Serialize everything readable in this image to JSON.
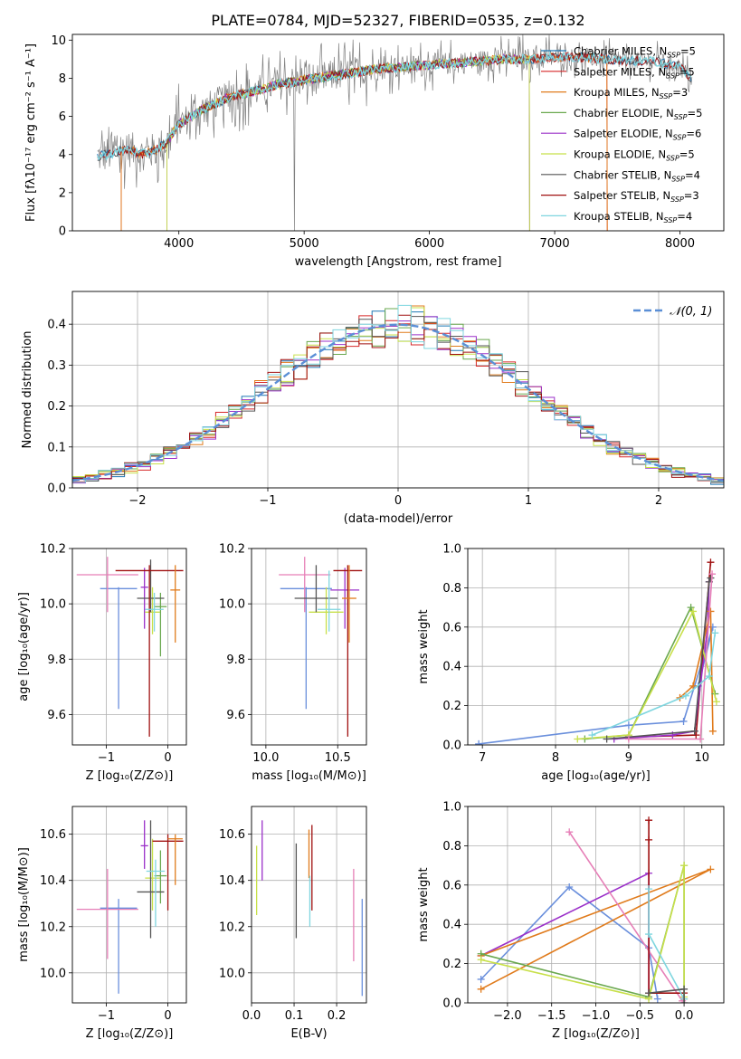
{
  "figure": {
    "title": "PLATE=0784, MJD=52327, FIBERID=0535, z=0.132"
  },
  "colors": {
    "data": "#808080",
    "Chabrier MILES": "#1f77b4",
    "Salpeter MILES": "#d62728",
    "Kroupa MILES": "#e07b1c",
    "Chabrier ELODIE": "#6aa84f",
    "Salpeter ELODIE": "#9b30c9",
    "Kroupa ELODIE": "#c8e04a",
    "Chabrier STELIB": "#555555",
    "Salpeter STELIB": "#a01010",
    "Kroupa STELIB": "#7fd6df",
    "blue": "#6a8fdc",
    "pink": "#e67fb7",
    "gauss": "#5b8fd6"
  },
  "chart_data": [
    {
      "id": "spectrum",
      "type": "line",
      "xlabel": "wavelength [Angstrom, rest frame]",
      "ylabel": "Flux [fλ10⁻¹⁷ erg cm⁻² s⁻¹ A⁻¹]",
      "xlim": [
        3150,
        8350
      ],
      "ylim": [
        0,
        10.3
      ],
      "xticks": [
        4000,
        5000,
        6000,
        7000,
        8000
      ],
      "yticks": [
        0,
        2,
        4,
        6,
        8,
        10
      ],
      "legend_position": "right",
      "legend": [
        "Chabrier MILES, N_SSP=5",
        "Salpeter MILES, N_SSP=5",
        "Kroupa MILES, N_SSP=3",
        "Chabrier ELODIE, N_SSP=5",
        "Salpeter ELODIE, N_SSP=6",
        "Kroupa ELODIE, N_SSP=5",
        "Chabrier STELIB, N_SSP=4",
        "Salpeter STELIB, N_SSP=3",
        "Kroupa STELIB, N_SSP=4"
      ],
      "continuum": {
        "x": [
          3350,
          3500,
          3600,
          3700,
          3800,
          3900,
          4000,
          4100,
          4200,
          4400,
          4600,
          4800,
          5000,
          5200,
          5400,
          5600,
          5800,
          6000,
          6200,
          6400,
          6600,
          6800,
          7000,
          7200,
          7400,
          7600,
          7800,
          8000,
          8100
        ],
        "y": [
          3.9,
          4.1,
          4.3,
          4.0,
          4.2,
          4.6,
          5.6,
          6.0,
          6.4,
          7.0,
          7.3,
          7.7,
          7.9,
          8.1,
          8.3,
          8.5,
          8.6,
          8.7,
          8.8,
          8.9,
          9.0,
          9.0,
          9.1,
          9.1,
          9.0,
          8.9,
          8.9,
          8.6,
          7.9
        ]
      }
    },
    {
      "id": "residuals",
      "type": "bar",
      "xlabel": "(data-model)/error",
      "ylabel": "Normed distribution",
      "xlim": [
        -2.5,
        2.5
      ],
      "ylim": [
        0,
        0.48
      ],
      "xticks": [
        -2,
        -1,
        0,
        1,
        2
      ],
      "yticks": [
        0.0,
        0.1,
        0.2,
        0.3,
        0.4
      ],
      "legend": [
        "𝒩(0, 1)"
      ],
      "legend_position": "top-right",
      "bin_width": 0.1
    },
    {
      "id": "age_Z",
      "type": "scatter",
      "xlabel": "Z [log₁₀(Z/Z⊙)]",
      "ylabel": "age  [log₁₀(age/yr)]",
      "xlim": [
        -1.55,
        0.3
      ],
      "ylim": [
        9.49,
        10.2
      ],
      "xticks": [
        -1,
        0
      ],
      "yticks": [
        9.6,
        9.8,
        10.0,
        10.2
      ],
      "points": [
        {
          "s": "blue",
          "x": -0.8,
          "y": 10.055,
          "xe": 0.3,
          "yl": 9.62,
          "yh": 10.06
        },
        {
          "s": "pink",
          "x": -0.98,
          "y": 10.105,
          "xe": 0.5,
          "yl": 9.97,
          "yh": 10.17
        },
        {
          "s": "Salpeter ELODIE",
          "x": -0.38,
          "y": 10.06,
          "xe": 0.06,
          "yl": 9.91,
          "yh": 10.13
        },
        {
          "s": "Kroupa ELODIE",
          "x": -0.25,
          "y": 9.97,
          "xe": 0.12,
          "yl": 9.89,
          "yh": 10.06
        },
        {
          "s": "Chabrier ELODIE",
          "x": -0.12,
          "y": 9.99,
          "xe": 0.1,
          "yl": 9.81,
          "yh": 10.04
        },
        {
          "s": "Chabrier STELIB",
          "x": -0.28,
          "y": 10.02,
          "xe": 0.22,
          "yl": 9.97,
          "yh": 10.16
        },
        {
          "s": "Salpeter STELIB",
          "x": -0.3,
          "y": 10.12,
          "xe": 0.55,
          "yl": 9.52,
          "yh": 10.14
        },
        {
          "s": "Kroupa MILES",
          "x": 0.12,
          "y": 10.05,
          "xe": 0.08,
          "yl": 9.86,
          "yh": 10.14
        },
        {
          "s": "Kroupa STELIB",
          "x": -0.22,
          "y": 9.98,
          "xe": 0.15,
          "yl": 9.9,
          "yh": 10.04
        }
      ]
    },
    {
      "id": "age_mass",
      "type": "scatter",
      "xlabel": "mass [log₁₀(M/M⊙)]",
      "xlim": [
        9.9,
        10.7
      ],
      "ylim": [
        9.49,
        10.2
      ],
      "xticks": [
        10.0,
        10.5
      ],
      "yticks": [
        9.6,
        9.8,
        10.0,
        10.2
      ],
      "points": [
        {
          "s": "blue",
          "x": 10.28,
          "y": 10.055,
          "xe": 0.18,
          "yl": 9.62,
          "yh": 10.06
        },
        {
          "s": "pink",
          "x": 10.27,
          "y": 10.105,
          "xe": 0.18,
          "yl": 9.97,
          "yh": 10.17
        },
        {
          "s": "Salpeter ELODIE",
          "x": 10.55,
          "y": 10.05,
          "xe": 0.1,
          "yl": 9.91,
          "yh": 10.13
        },
        {
          "s": "Kroupa ELODIE",
          "x": 10.42,
          "y": 9.97,
          "xe": 0.12,
          "yl": 9.89,
          "yh": 10.06
        },
        {
          "s": "Chabrier STELIB",
          "x": 10.35,
          "y": 10.02,
          "xe": 0.15,
          "yl": 9.97,
          "yh": 10.14
        },
        {
          "s": "Salpeter STELIB",
          "x": 10.57,
          "y": 10.12,
          "xe": 0.1,
          "yl": 9.52,
          "yh": 10.14
        },
        {
          "s": "Kroupa MILES",
          "x": 10.58,
          "y": 10.02,
          "xe": 0.05,
          "yl": 9.86,
          "yh": 10.14
        },
        {
          "s": "Kroupa STELIB",
          "x": 10.44,
          "y": 9.98,
          "xe": 0.08,
          "yl": 9.9,
          "yh": 10.12
        }
      ]
    },
    {
      "id": "weight_age",
      "type": "line",
      "xlabel": "age  [log₁₀(age/yr)]",
      "ylabel": "mass weight",
      "xlim": [
        6.8,
        10.3
      ],
      "ylim": [
        0,
        1.0
      ],
      "xticks": [
        7,
        8,
        9,
        10
      ],
      "yticks": [
        0.0,
        0.2,
        0.4,
        0.6,
        0.8,
        1.0
      ],
      "series": [
        {
          "s": "blue",
          "x": [
            6.95,
            9.0,
            9.75,
            10.15,
            9.95
          ],
          "y": [
            0.005,
            0.1,
            0.12,
            0.6,
            0.3
          ]
        },
        {
          "s": "Salpeter STELIB",
          "x": [
            9.0,
            9.92,
            10.12
          ],
          "y": [
            0.04,
            0.05,
            0.93
          ]
        },
        {
          "s": "Salpeter ELODIE",
          "x": [
            8.8,
            9.6,
            9.9,
            10.08,
            10.1
          ],
          "y": [
            0.03,
            0.05,
            0.07,
            0.6,
            0.83
          ]
        },
        {
          "s": "Kroupa MILES",
          "x": [
            9.7,
            9.88,
            10.12,
            10.15
          ],
          "y": [
            0.24,
            0.3,
            0.68,
            0.07
          ]
        },
        {
          "s": "Chabrier ELODIE",
          "x": [
            8.4,
            9.0,
            9.85,
            10.18
          ],
          "y": [
            0.03,
            0.05,
            0.7,
            0.26
          ]
        },
        {
          "s": "Kroupa ELODIE",
          "x": [
            8.3,
            9.0,
            9.88,
            10.2
          ],
          "y": [
            0.03,
            0.05,
            0.68,
            0.22
          ]
        },
        {
          "s": "Chabrier STELIB",
          "x": [
            8.7,
            9.9,
            10.1,
            10.12
          ],
          "y": [
            0.03,
            0.07,
            0.83,
            0.85
          ]
        },
        {
          "s": "pink",
          "x": [
            9.0,
            9.98,
            10.14
          ],
          "y": [
            0.03,
            0.03,
            0.87
          ]
        },
        {
          "s": "Kroupa STELIB",
          "x": [
            8.5,
            9.78,
            10.1,
            10.18
          ],
          "y": [
            0.05,
            0.25,
            0.35,
            0.57
          ]
        }
      ]
    },
    {
      "id": "mass_Z",
      "type": "scatter",
      "xlabel": "Z [log₁₀(Z/Z⊙)]",
      "ylabel": "mass [log₁₀(M/M⊙)]",
      "xlim": [
        -1.55,
        0.3
      ],
      "ylim": [
        9.87,
        10.72
      ],
      "xticks": [
        -1,
        0
      ],
      "yticks": [
        10.0,
        10.2,
        10.4,
        10.6
      ],
      "points": [
        {
          "s": "blue",
          "x": -0.8,
          "y": 10.28,
          "xe": 0.3,
          "yl": 9.91,
          "yh": 10.32
        },
        {
          "s": "pink",
          "x": -0.98,
          "y": 10.275,
          "xe": 0.5,
          "yl": 10.06,
          "yh": 10.45
        },
        {
          "s": "Salpeter ELODIE",
          "x": -0.38,
          "y": 10.55,
          "xe": 0.06,
          "yl": 10.45,
          "yh": 10.66
        },
        {
          "s": "Kroupa ELODIE",
          "x": -0.25,
          "y": 10.41,
          "xe": 0.12,
          "yl": 10.27,
          "yh": 10.58
        },
        {
          "s": "Chabrier ELODIE",
          "x": -0.12,
          "y": 10.42,
          "xe": 0.1,
          "yl": 10.3,
          "yh": 10.53
        },
        {
          "s": "Chabrier STELIB",
          "x": -0.28,
          "y": 10.35,
          "xe": 0.22,
          "yl": 10.15,
          "yh": 10.66
        },
        {
          "s": "Salpeter STELIB",
          "x": 0.0,
          "y": 10.57,
          "xe": 0.25,
          "yl": 10.27,
          "yh": 10.6
        },
        {
          "s": "Kroupa MILES",
          "x": 0.12,
          "y": 10.58,
          "xe": 0.12,
          "yl": 10.38,
          "yh": 10.6
        },
        {
          "s": "Kroupa STELIB",
          "x": -0.2,
          "y": 10.44,
          "xe": 0.15,
          "yl": 10.2,
          "yh": 10.49
        }
      ]
    },
    {
      "id": "mass_ebv",
      "type": "scatter",
      "xlabel": "E(B-V)",
      "xlim": [
        0,
        0.27
      ],
      "ylim": [
        9.87,
        10.72
      ],
      "xticks": [
        0.0,
        0.1,
        0.2
      ],
      "yticks": [
        10.0,
        10.2,
        10.4,
        10.6
      ],
      "points": [
        {
          "s": "Kroupa ELODIE",
          "x": 0.012,
          "y": 10.4,
          "yl": 10.25,
          "yh": 10.55
        },
        {
          "s": "Salpeter ELODIE",
          "x": 0.025,
          "y": 10.52,
          "yl": 10.4,
          "yh": 10.66
        },
        {
          "s": "Chabrier STELIB",
          "x": 0.105,
          "y": 10.35,
          "yl": 10.15,
          "yh": 10.56
        },
        {
          "s": "Kroupa MILES",
          "x": 0.135,
          "y": 10.5,
          "yl": 10.41,
          "yh": 10.62
        },
        {
          "s": "Salpeter STELIB",
          "x": 0.142,
          "y": 10.45,
          "yl": 10.27,
          "yh": 10.64
        },
        {
          "s": "Kroupa STELIB",
          "x": 0.137,
          "y": 10.3,
          "yl": 10.2,
          "yh": 10.42
        },
        {
          "s": "pink",
          "x": 0.24,
          "y": 10.27,
          "yl": 10.05,
          "yh": 10.45
        },
        {
          "s": "blue",
          "x": 0.26,
          "y": 10.1,
          "yl": 9.9,
          "yh": 10.32
        }
      ]
    },
    {
      "id": "weight_Z",
      "type": "line",
      "xlabel": "Z [log₁₀(Z/Z⊙)]",
      "ylabel": "mass weight",
      "xlim": [
        -2.45,
        0.45
      ],
      "ylim": [
        0,
        1.0
      ],
      "xticks": [
        -2.0,
        -1.5,
        -1.0,
        -0.5,
        0.0
      ],
      "yticks": [
        0.0,
        0.2,
        0.4,
        0.6,
        0.8,
        1.0
      ],
      "series": [
        {
          "s": "blue",
          "x": [
            -2.3,
            -1.3,
            -0.4,
            -0.3
          ],
          "y": [
            0.12,
            0.59,
            0.28,
            0.02
          ]
        },
        {
          "s": "Salpeter ELODIE",
          "x": [
            -2.3,
            -0.4,
            -0.4
          ],
          "y": [
            0.24,
            0.66,
            0.03
          ]
        },
        {
          "s": "Kroupa MILES",
          "x": [
            -2.3,
            0.3,
            -2.3
          ],
          "y": [
            0.07,
            0.68,
            0.24
          ]
        },
        {
          "s": "pink",
          "x": [
            -1.3,
            -0.02
          ],
          "y": [
            0.87,
            0.01
          ]
        },
        {
          "s": "Salpeter STELIB",
          "x": [
            -0.4,
            -0.4,
            -0.4,
            0.0
          ],
          "y": [
            0.93,
            0.83,
            0.05,
            0.05
          ]
        },
        {
          "s": "Chabrier ELODIE",
          "x": [
            -2.3,
            -0.4,
            0.0,
            0.0
          ],
          "y": [
            0.25,
            0.03,
            0.7,
            0.02
          ]
        },
        {
          "s": "Kroupa ELODIE",
          "x": [
            -2.3,
            -0.4,
            0.0,
            0.0
          ],
          "y": [
            0.22,
            0.02,
            0.7,
            0.03
          ]
        },
        {
          "s": "Kroupa STELIB",
          "x": [
            -0.4,
            -0.4,
            0.0
          ],
          "y": [
            0.58,
            0.35,
            0.02
          ]
        },
        {
          "s": "Chabrier STELIB",
          "x": [
            -0.4,
            0.0,
            0.0
          ],
          "y": [
            0.05,
            0.07,
            0.0
          ]
        }
      ]
    }
  ]
}
